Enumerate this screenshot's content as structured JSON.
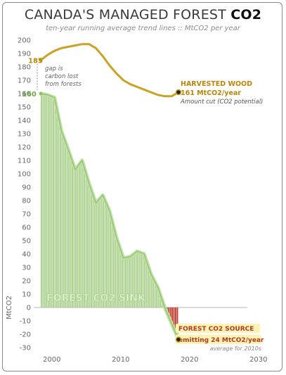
{
  "header": {
    "title_main": "CANADA'S MANAGED FOREST ",
    "title_bold": "CO2",
    "subtitle": "ten-year running average trend lines :: MtCO2 per year"
  },
  "colors": {
    "harvest": "#c9a227",
    "sink_fill": "#a9cf8a",
    "sink_line": "#bfe0a4",
    "source": "#c0392b",
    "highlight": "#fff3b0",
    "harvest_label": "#b8860b",
    "source_label": "#b03a2e"
  },
  "chart_data": {
    "type": "area",
    "ylabel": "MtCO2",
    "xlim": [
      1997,
      2033
    ],
    "ylim": [
      -35,
      205
    ],
    "x_ticks": [
      2000,
      2010,
      2020,
      2030
    ],
    "y_ticks": [
      -30,
      -20,
      -10,
      0,
      10,
      20,
      30,
      40,
      50,
      60,
      70,
      80,
      90,
      100,
      110,
      120,
      130,
      140,
      150,
      160,
      170,
      180,
      190,
      200
    ],
    "grid": "none",
    "series": [
      {
        "name": "HARVESTED WOOD",
        "x": [
          1999,
          2000,
          2001,
          2002,
          2003,
          2004,
          2005,
          2006,
          2007,
          2008,
          2009,
          2010,
          2011,
          2012,
          2013,
          2014,
          2015,
          2016,
          2017,
          2018,
          2019
        ],
        "values": [
          185,
          189,
          192,
          194,
          195,
          196,
          197,
          197,
          194,
          188,
          181,
          175,
          170,
          167,
          165,
          163,
          161,
          159,
          158,
          158,
          161
        ]
      },
      {
        "name": "FOREST CO2 SINK",
        "x": [
          1999,
          2000,
          2001,
          2002,
          2003,
          2004,
          2005,
          2006,
          2007,
          2008,
          2009,
          2010,
          2011,
          2012,
          2013,
          2014,
          2015,
          2016,
          2017,
          2018,
          2019
        ],
        "values": [
          160,
          159,
          157,
          132,
          118,
          103,
          110,
          93,
          78,
          84,
          72,
          52,
          37,
          38,
          42,
          40,
          25,
          15,
          0,
          -12,
          -24
        ]
      }
    ],
    "annotations": {
      "harvest_start": "185",
      "sink_start": "160",
      "gap_note": [
        "gap is",
        "carbon lost",
        "from forests"
      ],
      "harvest_title": "HARVESTED WOOD",
      "harvest_value": "161 MtCO2/year",
      "harvest_note": "Amount cut (CO2 potential)",
      "sink_label": "FOREST CO2 SINK",
      "source_title": "FOREST CO2 SOURCE",
      "source_value_prefix": "emitting ",
      "source_value": "24 MtCO2/year",
      "source_note": "average for 2010s"
    }
  }
}
